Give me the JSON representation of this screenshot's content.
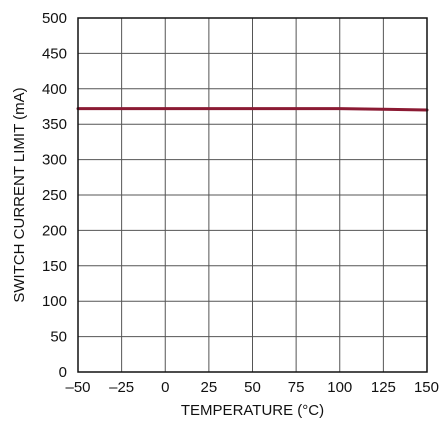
{
  "chart_data": {
    "type": "line",
    "xlabel": "TEMPERATURE (°C)",
    "ylabel": "SWITCH CURRENT LIMIT (mA)",
    "xlim": [
      -50,
      150
    ],
    "ylim": [
      0,
      500
    ],
    "x_ticks": [
      -50,
      -25,
      0,
      25,
      50,
      75,
      100,
      125,
      150
    ],
    "x_tick_labels": [
      "–50",
      "–25",
      "0",
      "25",
      "50",
      "75",
      "100",
      "125",
      "150"
    ],
    "y_ticks": [
      0,
      50,
      100,
      150,
      200,
      250,
      300,
      350,
      400,
      450,
      500
    ],
    "y_tick_labels": [
      "0",
      "50",
      "100",
      "150",
      "200",
      "250",
      "300",
      "350",
      "400",
      "450",
      "500"
    ],
    "grid": true,
    "series": [
      {
        "color": "#8b1a33",
        "x": [
          -50,
          -25,
          0,
          25,
          50,
          75,
          100,
          125,
          150
        ],
        "y": [
          372,
          372,
          372,
          372,
          372,
          372,
          372,
          371,
          370
        ]
      }
    ]
  }
}
